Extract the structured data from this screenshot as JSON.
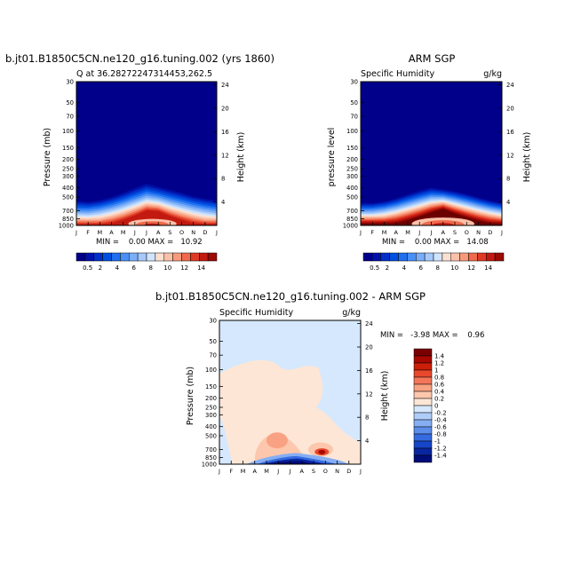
{
  "chart_data": [
    {
      "type": "heatmap",
      "title": "b.jt01.B1850C5CN.ne120_g16.tuning.002 (yrs 1860)",
      "subtitle_left": "Q at 36.28272247314453,262.5",
      "subtitle_right": "",
      "ylabel": "Pressure (mb)",
      "ylabel_right": "Height (km)",
      "x_ticks": [
        "J",
        "F",
        "M",
        "A",
        "M",
        "J",
        "J",
        "A",
        "S",
        "O",
        "N",
        "D",
        "J"
      ],
      "y_ticks": [
        "30",
        "50",
        "70",
        "100",
        "150",
        "200",
        "250",
        "300",
        "400",
        "500",
        "700",
        "850",
        "1000"
      ],
      "y_ticks_right": [
        "24",
        "20",
        "16",
        "12",
        "8",
        "4"
      ],
      "stats": "MIN =    0.00 MAX =   10.92",
      "colorbar": {
        "labels": [
          "0.5",
          "2",
          "4",
          "6",
          "8",
          "10",
          "12",
          "14"
        ],
        "levels": [
          0.5,
          1,
          2,
          3,
          4,
          5,
          6,
          7,
          8,
          9,
          10,
          11,
          12,
          13,
          14
        ]
      },
      "profile": {
        "boundary_mb": [
          520,
          540,
          520,
          480,
          430,
          380,
          340,
          370,
          400,
          430,
          470,
          500,
          520
        ],
        "peak_month_index": 6.5,
        "peak_value": 10.92
      }
    },
    {
      "type": "heatmap",
      "title": "ARM SGP",
      "subtitle_left": "Specific Humidity",
      "subtitle_right": "g/kg",
      "ylabel": "pressure level",
      "ylabel_right": "Height (km)",
      "x_ticks": [
        "J",
        "F",
        "M",
        "A",
        "M",
        "J",
        "J",
        "A",
        "S",
        "O",
        "N",
        "D",
        "J"
      ],
      "y_ticks": [
        "30",
        "50",
        "70",
        "100",
        "150",
        "200",
        "250",
        "300",
        "400",
        "500",
        "700",
        "850",
        "1000"
      ],
      "y_ticks_right": [
        "24",
        "20",
        "16",
        "12",
        "8",
        "4"
      ],
      "stats": "MIN =    0.00 MAX =   14.08",
      "colorbar": {
        "labels": [
          "0.5",
          "2",
          "4",
          "6",
          "8",
          "10",
          "12",
          "14"
        ],
        "levels": [
          0.5,
          1,
          2,
          3,
          4,
          5,
          6,
          7,
          8,
          9,
          10,
          11,
          12,
          13,
          14
        ]
      },
      "profile": {
        "boundary_mb": [
          560,
          560,
          540,
          500,
          450,
          410,
          380,
          400,
          420,
          450,
          490,
          530,
          560
        ],
        "peak_month_index": 7,
        "peak_value": 14.08
      }
    },
    {
      "type": "heatmap",
      "title": "b.jt01.B1850C5CN.ne120_g16.tuning.002 - ARM SGP",
      "subtitle_left": "Specific Humidity",
      "subtitle_right": "g/kg",
      "ylabel": "Pressure (mb)",
      "ylabel_right": "Height (km)",
      "x_ticks": [
        "J",
        "F",
        "M",
        "A",
        "M",
        "J",
        "J",
        "A",
        "S",
        "O",
        "N",
        "D",
        "J"
      ],
      "y_ticks": [
        "30",
        "50",
        "70",
        "100",
        "150",
        "200",
        "250",
        "300",
        "400",
        "500",
        "700",
        "850",
        "1000"
      ],
      "y_ticks_right": [
        "24",
        "20",
        "16",
        "12",
        "8",
        "4"
      ],
      "stats": "MIN =   -3.98 MAX =    0.96",
      "colorbar": {
        "labels": [
          "1.4",
          "1.2",
          "1",
          "0.8",
          "0.6",
          "0.4",
          "0.2",
          "0",
          "-0.2",
          "-0.4",
          "-0.6",
          "-0.8",
          "-1",
          "-1.2",
          "-1.4"
        ],
        "levels": [
          1.4,
          1.2,
          1,
          0.8,
          0.6,
          0.4,
          0.2,
          0,
          -0.2,
          -0.4,
          -0.6,
          -0.8,
          -1,
          -1.2,
          -1.4
        ]
      }
    }
  ],
  "colors": {
    "moist": [
      "#00008b",
      "#0012a8",
      "#0030c8",
      "#0050e0",
      "#1f6ff0",
      "#4a8ff5",
      "#7aaef8",
      "#a6c9fb",
      "#d0e4fd",
      "#fde0d0",
      "#fbc0a8",
      "#f79a7c",
      "#ef6a4c",
      "#de3a25",
      "#c21a10",
      "#9c0a05",
      "#6b0000"
    ],
    "diff": [
      "#7a0000",
      "#a80800",
      "#cc1f0a",
      "#e8482c",
      "#f4765a",
      "#f9a283",
      "#fcc7ad",
      "#fde6d6",
      "#d6e8fd",
      "#b0cdf9",
      "#86aef3",
      "#5c8deb",
      "#356ae0",
      "#1745c8",
      "#0a25a0",
      "#000c78"
    ]
  }
}
